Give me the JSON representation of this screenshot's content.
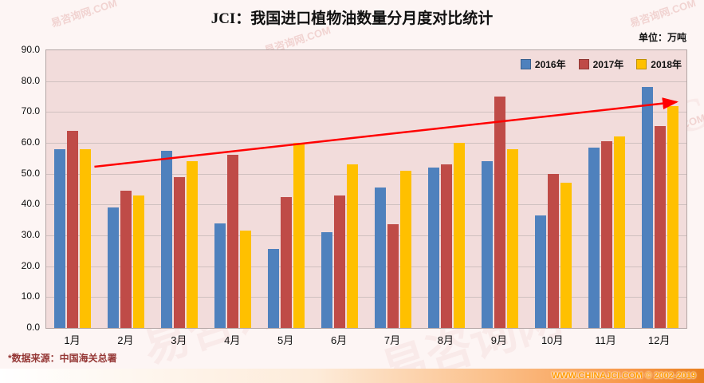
{
  "title": "JCI：我国进口植物油数量分月度对比统计",
  "unit_label": "单位：万吨",
  "source_note": "*数据来源：中国海关总署",
  "footer": {
    "site": "WWW.CHINAJCI.COM © 2002-2019"
  },
  "watermark": {
    "text": "易咨询网.COM"
  },
  "colors": {
    "bar_2016": "#4f81bd",
    "bar_2017": "#bf4b47",
    "bar_2018": "#ffc000",
    "plot_background": "#f2dcdb",
    "trend_arrow": "#ff0000",
    "footer_orange": "#f79646",
    "source_text": "#953735"
  },
  "chart_data": {
    "type": "bar",
    "title": "JCI：我国进口植物油数量分月度对比统计",
    "categories": [
      "1月",
      "2月",
      "3月",
      "4月",
      "5月",
      "6月",
      "7月",
      "8月",
      "9月",
      "10月",
      "11月",
      "12月"
    ],
    "series": [
      {
        "name": "2016年",
        "color": "#4f81bd",
        "values": [
          58.0,
          39.0,
          57.5,
          34.0,
          25.5,
          31.0,
          45.5,
          52.0,
          54.0,
          36.5,
          58.5,
          78.0
        ]
      },
      {
        "name": "2017年",
        "color": "#bf4b47",
        "values": [
          64.0,
          44.5,
          49.0,
          56.0,
          42.5,
          43.0,
          33.5,
          53.0,
          75.0,
          50.0,
          60.5,
          65.5
        ]
      },
      {
        "name": "2018年",
        "color": "#ffc000",
        "values": [
          58.0,
          43.0,
          54.0,
          31.5,
          60.0,
          53.0,
          51.0,
          60.0,
          58.0,
          47.0,
          62.0,
          72.0
        ]
      }
    ],
    "ylim": [
      0,
      90
    ],
    "yticks": [
      0,
      10,
      20,
      30,
      40,
      50,
      60,
      70,
      80,
      90
    ],
    "ytick_format": "one_decimal",
    "grid": true,
    "legend_position": "top-right-inside",
    "trend_arrow": {
      "from": {
        "month": 1,
        "value": 52
      },
      "to": {
        "month": 12,
        "value": 73
      },
      "color": "#ff0000"
    }
  }
}
